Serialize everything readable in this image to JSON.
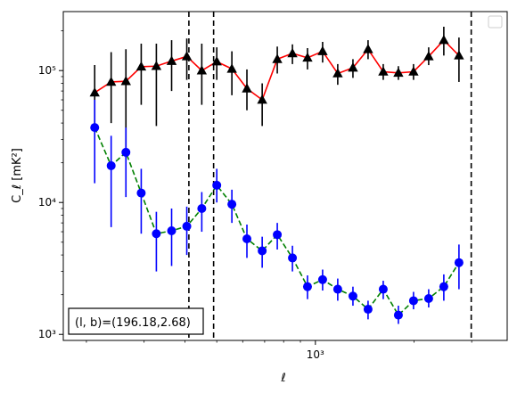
{
  "chart_data": {
    "type": "scatter",
    "xlabel": "ℓ",
    "ylabel": "C_ℓ  [mK²]",
    "xscale": "log",
    "yscale": "log",
    "xlim": [
      170,
      3850
    ],
    "ylim": [
      900,
      280000
    ],
    "x_tick_labels": [
      {
        "value": 1000,
        "label": "10³"
      }
    ],
    "y_tick_labels": [
      {
        "value": 1000,
        "label": "10³"
      },
      {
        "value": 10000,
        "label": "10⁴"
      },
      {
        "value": 100000,
        "label": "10⁵"
      }
    ],
    "grid": false,
    "legend": "top-right (empty)",
    "vlines": [
      411,
      489,
      2990
    ],
    "annotation": {
      "text": "(l, b)=(196.18,2.68)",
      "position": "bottom-left"
    },
    "series": [
      {
        "marker": "triangle",
        "color": "#000000",
        "line_color": "#ff0000",
        "line_style": "solid",
        "points": [
          {
            "x": 212,
            "y": 68000,
            "lo": 38000,
            "hi": 110000
          },
          {
            "x": 238,
            "y": 82000,
            "lo": 40000,
            "hi": 138000
          },
          {
            "x": 264,
            "y": 83000,
            "lo": 22000,
            "hi": 145000
          },
          {
            "x": 294,
            "y": 107000,
            "lo": 55000,
            "hi": 160000
          },
          {
            "x": 327,
            "y": 108000,
            "lo": 38000,
            "hi": 160000
          },
          {
            "x": 364,
            "y": 118000,
            "lo": 70000,
            "hi": 170000
          },
          {
            "x": 405,
            "y": 128000,
            "lo": 85000,
            "hi": 175000
          },
          {
            "x": 450,
            "y": 100000,
            "lo": 55000,
            "hi": 160000
          },
          {
            "x": 500,
            "y": 117000,
            "lo": 85000,
            "hi": 150000
          },
          {
            "x": 556,
            "y": 103000,
            "lo": 65000,
            "hi": 140000
          },
          {
            "x": 618,
            "y": 73000,
            "lo": 50000,
            "hi": 102000
          },
          {
            "x": 688,
            "y": 60000,
            "lo": 38000,
            "hi": 80000
          },
          {
            "x": 765,
            "y": 122000,
            "lo": 95000,
            "hi": 152000
          },
          {
            "x": 851,
            "y": 135000,
            "lo": 112000,
            "hi": 158000
          },
          {
            "x": 946,
            "y": 125000,
            "lo": 102000,
            "hi": 148000
          },
          {
            "x": 1052,
            "y": 140000,
            "lo": 115000,
            "hi": 165000
          },
          {
            "x": 1170,
            "y": 95000,
            "lo": 78000,
            "hi": 112000
          },
          {
            "x": 1302,
            "y": 105000,
            "lo": 88000,
            "hi": 122000
          },
          {
            "x": 1448,
            "y": 145000,
            "lo": 122000,
            "hi": 170000
          },
          {
            "x": 1611,
            "y": 98000,
            "lo": 85000,
            "hi": 112000
          },
          {
            "x": 1792,
            "y": 96000,
            "lo": 85000,
            "hi": 108000
          },
          {
            "x": 1993,
            "y": 98000,
            "lo": 85000,
            "hi": 112000
          },
          {
            "x": 2217,
            "y": 128000,
            "lo": 110000,
            "hi": 150000
          },
          {
            "x": 2466,
            "y": 170000,
            "lo": 130000,
            "hi": 215000
          },
          {
            "x": 2743,
            "y": 130000,
            "lo": 82000,
            "hi": 178000
          }
        ]
      },
      {
        "marker": "circle",
        "color": "#0000ff",
        "line_color": "#008000",
        "line_style": "dashed",
        "points": [
          {
            "x": 212,
            "y": 37000,
            "lo": 14000,
            "hi": 60000
          },
          {
            "x": 238,
            "y": 19000,
            "lo": 6500,
            "hi": 32000
          },
          {
            "x": 264,
            "y": 24000,
            "lo": 11000,
            "hi": 37000
          },
          {
            "x": 294,
            "y": 11800,
            "lo": 5800,
            "hi": 18000
          },
          {
            "x": 327,
            "y": 5800,
            "lo": 3000,
            "hi": 8500
          },
          {
            "x": 364,
            "y": 6100,
            "lo": 3300,
            "hi": 9000
          },
          {
            "x": 405,
            "y": 6600,
            "lo": 4000,
            "hi": 9300
          },
          {
            "x": 450,
            "y": 9000,
            "lo": 6000,
            "hi": 12000
          },
          {
            "x": 500,
            "y": 13500,
            "lo": 10000,
            "hi": 18000
          },
          {
            "x": 556,
            "y": 9700,
            "lo": 7000,
            "hi": 12500
          },
          {
            "x": 618,
            "y": 5300,
            "lo": 3800,
            "hi": 6800
          },
          {
            "x": 688,
            "y": 4300,
            "lo": 3200,
            "hi": 5500
          },
          {
            "x": 765,
            "y": 5700,
            "lo": 4400,
            "hi": 7000
          },
          {
            "x": 851,
            "y": 3800,
            "lo": 3000,
            "hi": 4700
          },
          {
            "x": 946,
            "y": 2300,
            "lo": 1850,
            "hi": 2800
          },
          {
            "x": 1052,
            "y": 2600,
            "lo": 2150,
            "hi": 3100
          },
          {
            "x": 1170,
            "y": 2200,
            "lo": 1800,
            "hi": 2650
          },
          {
            "x": 1302,
            "y": 1950,
            "lo": 1650,
            "hi": 2300
          },
          {
            "x": 1448,
            "y": 1550,
            "lo": 1300,
            "hi": 1800
          },
          {
            "x": 1611,
            "y": 2200,
            "lo": 1850,
            "hi": 2550
          },
          {
            "x": 1792,
            "y": 1400,
            "lo": 1200,
            "hi": 1650
          },
          {
            "x": 1993,
            "y": 1800,
            "lo": 1550,
            "hi": 2100
          },
          {
            "x": 2217,
            "y": 1870,
            "lo": 1600,
            "hi": 2200
          },
          {
            "x": 2466,
            "y": 2300,
            "lo": 1800,
            "hi": 2850
          },
          {
            "x": 2743,
            "y": 3500,
            "lo": 2200,
            "hi": 4800
          }
        ]
      }
    ]
  }
}
